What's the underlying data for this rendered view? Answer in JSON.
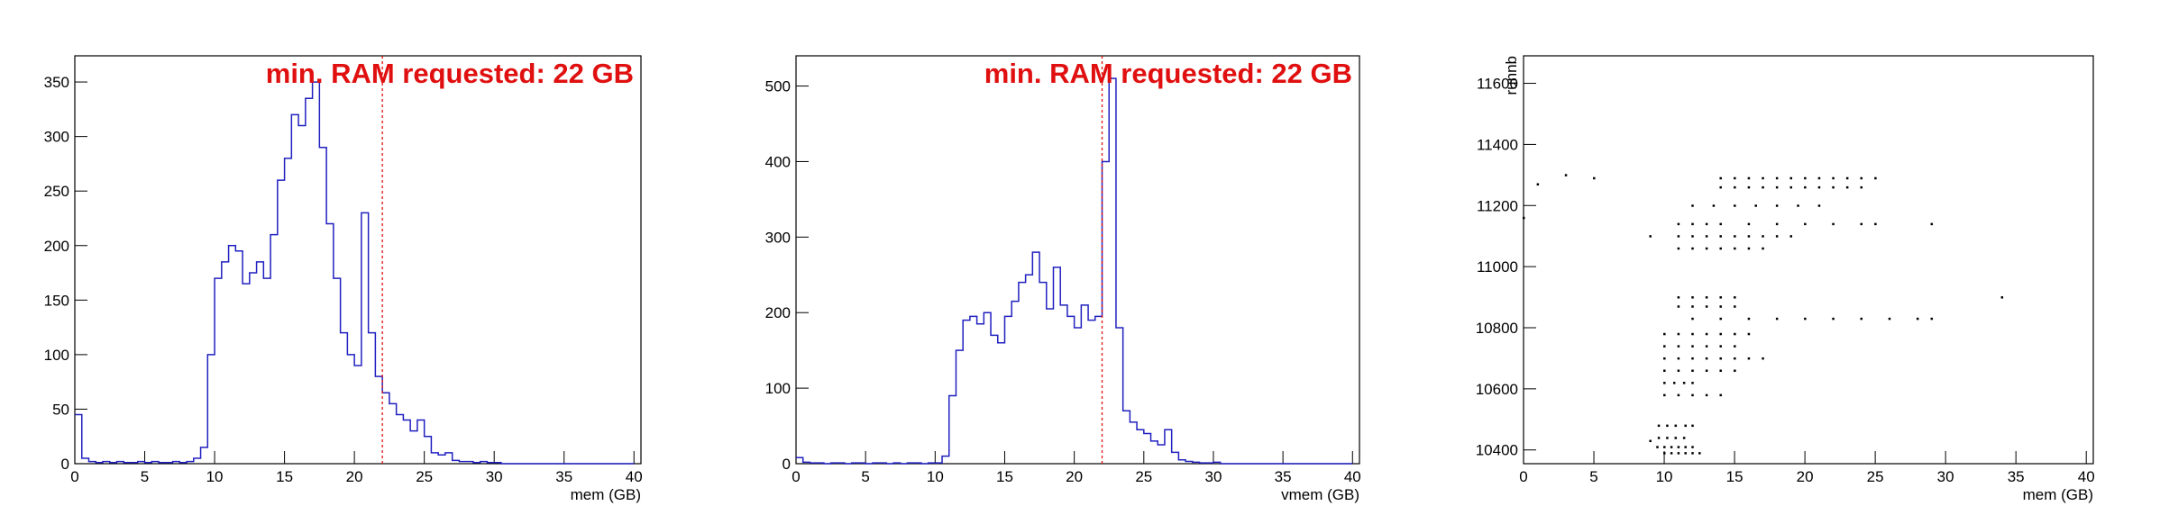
{
  "chart_data": [
    {
      "type": "histogram",
      "color": "#2020c0",
      "xlabel": "mem (GB)",
      "annotation": "min. RAM requested: 22 GB",
      "threshold": 22,
      "threshold_color": "#e01010",
      "bins": [
        0,
        0.5,
        1,
        1.5,
        2,
        2.5,
        3,
        3.5,
        4,
        4.5,
        5,
        5.5,
        6,
        6.5,
        7,
        7.5,
        8,
        8.5,
        9,
        9.5,
        10,
        10.5,
        11,
        11.5,
        12,
        12.5,
        13,
        13.5,
        14,
        14.5,
        15,
        15.5,
        16,
        16.5,
        17,
        17.5,
        18,
        18.5,
        19,
        19.5,
        20,
        20.5,
        21,
        21.5,
        22,
        22.5,
        23,
        23.5,
        24,
        24.5,
        25,
        25.5,
        26,
        26.5,
        27,
        27.5,
        28,
        28.5,
        29,
        29.5,
        30,
        30.5,
        31,
        31.5,
        32,
        32.5,
        33,
        33.5,
        34,
        34.5,
        35,
        35.5,
        36,
        36.5,
        37,
        37.5,
        38,
        38.5,
        39,
        39.5,
        40
      ],
      "values": [
        45,
        5,
        2,
        1,
        2,
        1,
        2,
        1,
        1,
        2,
        1,
        2,
        1,
        1,
        2,
        1,
        2,
        5,
        15,
        100,
        170,
        185,
        200,
        195,
        165,
        175,
        185,
        170,
        210,
        260,
        280,
        320,
        310,
        335,
        350,
        290,
        220,
        170,
        120,
        100,
        90,
        230,
        120,
        80,
        65,
        55,
        45,
        40,
        30,
        40,
        25,
        10,
        8,
        10,
        3,
        2,
        2,
        1,
        2,
        1,
        1,
        0,
        0,
        0,
        0,
        0,
        0,
        0,
        0,
        0,
        0,
        0,
        0,
        0,
        0,
        0,
        0,
        0,
        0,
        0
      ],
      "xlim": [
        0,
        40.5
      ],
      "ylim": [
        0,
        374
      ],
      "xticks": [
        0,
        5,
        10,
        15,
        20,
        25,
        30,
        35,
        40
      ],
      "yticks": [
        0,
        50,
        100,
        150,
        200,
        250,
        300,
        350
      ]
    },
    {
      "type": "histogram",
      "color": "#2020c0",
      "xlabel": "vmem (GB)",
      "annotation": "min. RAM requested: 22 GB",
      "threshold": 22,
      "threshold_color": "#e01010",
      "bins": [
        0,
        0.5,
        1,
        1.5,
        2,
        2.5,
        3,
        3.5,
        4,
        4.5,
        5,
        5.5,
        6,
        6.5,
        7,
        7.5,
        8,
        8.5,
        9,
        9.5,
        10,
        10.5,
        11,
        11.5,
        12,
        12.5,
        13,
        13.5,
        14,
        14.5,
        15,
        15.5,
        16,
        16.5,
        17,
        17.5,
        18,
        18.5,
        19,
        19.5,
        20,
        20.5,
        21,
        21.5,
        22,
        22.5,
        23,
        23.5,
        24,
        24.5,
        25,
        25.5,
        26,
        26.5,
        27,
        27.5,
        28,
        28.5,
        29,
        29.5,
        30,
        30.5,
        31,
        31.5,
        32,
        32.5,
        33,
        33.5,
        34,
        34.5,
        35,
        35.5,
        36,
        36.5,
        37,
        37.5,
        38,
        38.5,
        39,
        39.5,
        40
      ],
      "values": [
        8,
        2,
        1,
        1,
        0,
        1,
        1,
        0,
        1,
        1,
        0,
        1,
        1,
        0,
        1,
        0,
        1,
        1,
        0,
        1,
        1,
        10,
        90,
        150,
        190,
        195,
        185,
        200,
        170,
        160,
        195,
        215,
        240,
        250,
        280,
        240,
        205,
        260,
        210,
        195,
        180,
        210,
        190,
        195,
        400,
        510,
        180,
        70,
        55,
        45,
        40,
        30,
        25,
        45,
        15,
        5,
        3,
        2,
        1,
        1,
        2,
        0,
        0,
        0,
        0,
        0,
        0,
        0,
        0,
        0,
        0,
        0,
        0,
        0,
        0,
        0,
        0,
        0,
        0,
        0
      ],
      "xlim": [
        0,
        40.5
      ],
      "ylim": [
        0,
        540
      ],
      "xticks": [
        0,
        5,
        10,
        15,
        20,
        25,
        30,
        35,
        40
      ],
      "yticks": [
        0,
        100,
        200,
        300,
        400,
        500
      ]
    },
    {
      "type": "scatter",
      "color": "#000000",
      "xlabel": "mem (GB)",
      "ylabel": "runnb",
      "x": [
        10,
        10.5,
        11,
        11.5,
        12,
        12.5,
        9.5,
        10,
        10.5,
        11,
        11.5,
        12,
        9.6,
        10.2,
        10.8,
        11.4,
        9.6,
        10.2,
        10.8,
        11.5,
        12,
        10,
        11,
        12,
        13,
        14,
        10,
        10.7,
        11.4,
        12,
        10,
        11,
        12,
        13,
        14,
        15,
        10,
        11,
        12,
        13,
        14,
        15,
        16,
        17,
        10,
        11,
        12,
        13,
        14,
        15,
        10,
        11,
        12,
        13,
        14,
        15,
        16,
        12,
        14,
        16,
        18,
        20,
        22,
        24,
        26,
        28,
        29,
        11,
        12,
        13,
        14,
        15,
        11,
        12,
        13,
        14,
        15,
        11,
        12,
        13,
        14,
        15,
        16,
        17,
        11,
        12,
        13,
        14,
        15,
        16,
        17,
        18,
        19,
        11,
        12,
        13,
        14,
        16,
        18,
        20,
        22,
        24,
        25,
        29,
        12,
        13.5,
        15,
        16.5,
        18,
        19.5,
        21,
        14,
        15,
        16,
        17,
        18,
        19,
        20,
        21,
        22,
        23,
        24,
        14,
        15,
        16,
        17,
        18,
        19,
        20,
        21,
        22,
        23,
        24,
        25,
        0,
        3,
        1,
        34,
        9,
        9,
        5
      ],
      "y": [
        10390,
        10390,
        10390,
        10390,
        10390,
        10390,
        10410,
        10410,
        10410,
        10410,
        10410,
        10410,
        10440,
        10440,
        10440,
        10440,
        10480,
        10480,
        10480,
        10480,
        10480,
        10580,
        10580,
        10580,
        10580,
        10580,
        10620,
        10620,
        10620,
        10620,
        10660,
        10660,
        10660,
        10660,
        10660,
        10660,
        10700,
        10700,
        10700,
        10700,
        10700,
        10700,
        10700,
        10700,
        10740,
        10740,
        10740,
        10740,
        10740,
        10740,
        10780,
        10780,
        10780,
        10780,
        10780,
        10780,
        10780,
        10830,
        10830,
        10830,
        10830,
        10830,
        10830,
        10830,
        10830,
        10830,
        10830,
        10870,
        10870,
        10870,
        10870,
        10870,
        10900,
        10900,
        10900,
        10900,
        10900,
        11060,
        11060,
        11060,
        11060,
        11060,
        11060,
        11060,
        11100,
        11100,
        11100,
        11100,
        11100,
        11100,
        11100,
        11100,
        11100,
        11140,
        11140,
        11140,
        11140,
        11140,
        11140,
        11140,
        11140,
        11140,
        11140,
        11140,
        11200,
        11200,
        11200,
        11200,
        11200,
        11200,
        11200,
        11260,
        11260,
        11260,
        11260,
        11260,
        11260,
        11260,
        11260,
        11260,
        11260,
        11260,
        11290,
        11290,
        11290,
        11290,
        11290,
        11290,
        11290,
        11290,
        11290,
        11290,
        11290,
        11290,
        11160,
        11300,
        11270,
        10900,
        10430,
        11100,
        11290
      ],
      "xlim": [
        0,
        40.5
      ],
      "ylim": [
        10355,
        11690
      ],
      "xticks": [
        0,
        5,
        10,
        15,
        20,
        25,
        30,
        35,
        40
      ],
      "yticks": [
        10400,
        10600,
        10800,
        11000,
        11200,
        11400,
        11600
      ]
    }
  ]
}
